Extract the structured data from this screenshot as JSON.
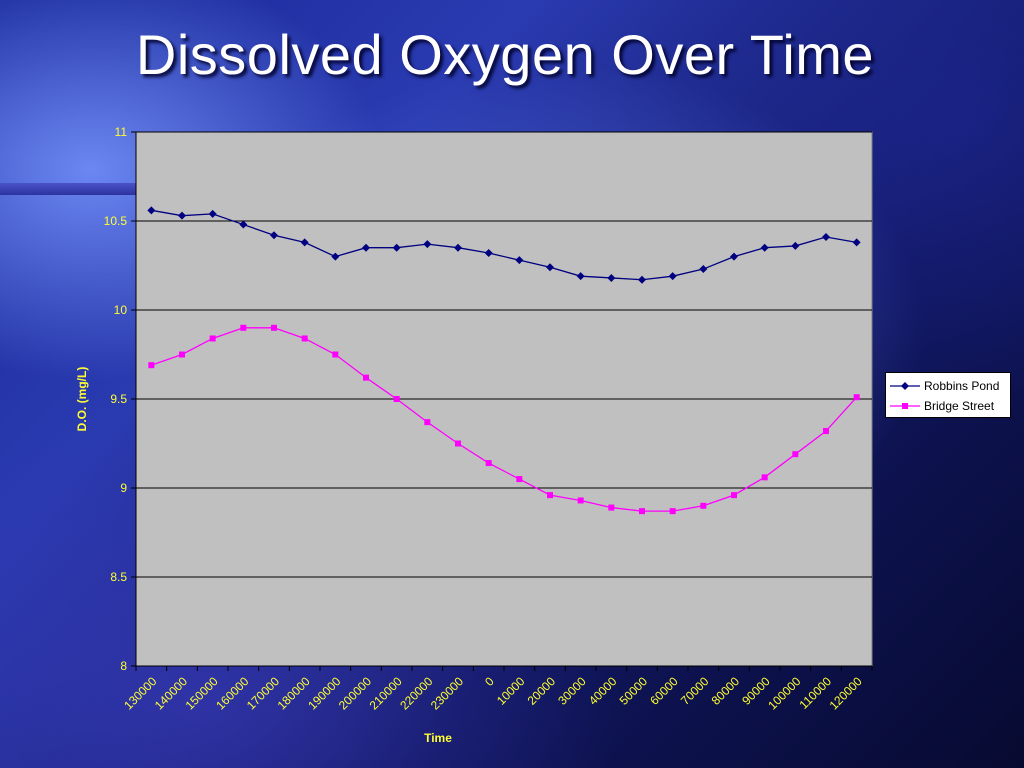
{
  "slide": {
    "title": "Dissolved Oxygen Over Time"
  },
  "chart_data": {
    "type": "line",
    "xlabel": "Time",
    "ylabel": "D.O. (mg/L)",
    "ylim": [
      8,
      11
    ],
    "yticks": [
      "11",
      "10.5",
      "10",
      "9.5",
      "9",
      "8.5",
      "8"
    ],
    "categories": [
      "130000",
      "140000",
      "150000",
      "160000",
      "170000",
      "180000",
      "190000",
      "200000",
      "210000",
      "220000",
      "230000",
      "0",
      "10000",
      "20000",
      "30000",
      "40000",
      "50000",
      "60000",
      "70000",
      "80000",
      "90000",
      "100000",
      "110000",
      "120000"
    ],
    "series": [
      {
        "name": "Robbins Pond",
        "color": "#000080",
        "marker": "diamond",
        "values": [
          10.56,
          10.53,
          10.54,
          10.48,
          10.42,
          10.38,
          10.3,
          10.35,
          10.35,
          10.37,
          10.35,
          10.32,
          10.28,
          10.24,
          10.19,
          10.18,
          10.17,
          10.19,
          10.23,
          10.3,
          10.35,
          10.36,
          10.41,
          10.38
        ]
      },
      {
        "name": "Bridge Street",
        "color": "#ff00ff",
        "marker": "square",
        "values": [
          9.69,
          9.75,
          9.84,
          9.9,
          9.9,
          9.84,
          9.75,
          9.62,
          9.5,
          9.37,
          9.25,
          9.14,
          9.05,
          8.96,
          8.93,
          8.89,
          8.87,
          8.87,
          8.9,
          8.96,
          9.06,
          9.19,
          9.32,
          9.51
        ]
      }
    ],
    "grid": true,
    "legend_position": "right"
  }
}
